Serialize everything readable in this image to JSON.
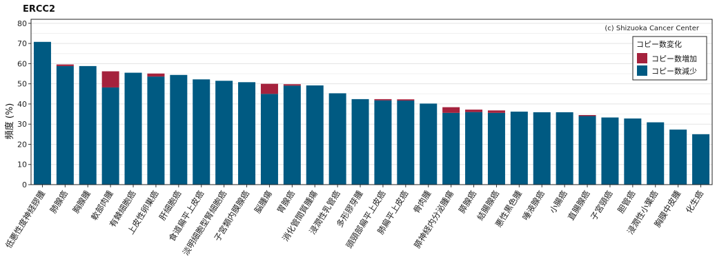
{
  "chart_data": {
    "type": "bar",
    "title": "ERCC2",
    "xlabel": "",
    "ylabel": "頻度 (%)",
    "ylim": [
      0,
      82
    ],
    "yticks": [
      0,
      10,
      20,
      30,
      40,
      50,
      60,
      70,
      80
    ],
    "ytick_labels": [
      "0",
      "10",
      "20",
      "30",
      "40",
      "50",
      "60",
      "70",
      "80"
    ],
    "grid": true,
    "stacked": true,
    "copyright": "(c) Shizuoka Cancer Center",
    "legend": {
      "title": "コピー数変化",
      "position": "top-right"
    },
    "categories": [
      "低悪性度神経膠腫",
      "肺腺癌",
      "胸腺腫",
      "軟部肉腫",
      "有棘細胞癌",
      "上皮性卵巣癌",
      "肝細胞癌",
      "食道扁平上皮癌",
      "淡明細胞型腎細胞癌",
      "子宮類内膜腺癌",
      "脳腫瘍",
      "胃腺癌",
      "消化管間質腫瘍",
      "浸潤性乳管癌",
      "多形膠芽腫",
      "頭頸部扁平上皮癌",
      "肺扁平上皮癌",
      "骨肉腫",
      "膵神経内分泌腫瘍",
      "膵腺癌",
      "結腸腺癌",
      "悪性黒色腫",
      "唾液腺癌",
      "小腸癌",
      "直腸腺癌",
      "子宮頸癌",
      "胆管癌",
      "浸潤性小葉癌",
      "胸膜中皮腫",
      "化生癌"
    ],
    "series": [
      {
        "name": "コピー数減少",
        "color": "#005a82",
        "values": [
          70.8,
          58.8,
          58.8,
          48.2,
          55.5,
          53.6,
          54.4,
          52.2,
          51.5,
          50.8,
          45.0,
          49.1,
          49.2,
          45.3,
          42.4,
          41.8,
          41.7,
          40.2,
          35.6,
          36.0,
          35.6,
          36.2,
          35.9,
          35.9,
          34.0,
          33.3,
          32.8,
          30.9,
          27.3,
          25.0
        ]
      },
      {
        "name": "コピー数増加",
        "color": "#a5223d",
        "values": [
          0,
          0.8,
          0,
          8.0,
          0,
          1.5,
          0,
          0,
          0,
          0,
          5.0,
          0.7,
          0,
          0,
          0,
          0.6,
          0.6,
          0,
          2.8,
          1.2,
          1.2,
          0,
          0,
          0,
          0.5,
          0,
          0,
          0,
          0,
          0
        ]
      }
    ]
  }
}
